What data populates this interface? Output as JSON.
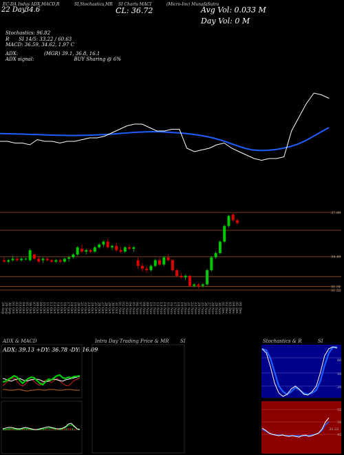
{
  "header": {
    "line1_a": "EC-DA Indus ADX,MACD,R",
    "line1_b": "SI,Stochastics,MR",
    "line1_c": "SI Charts MACI",
    "line1_d": "(Micro-Inv) MunafaSutra",
    "date_left": "22 Day",
    "date_num": "34.6",
    "close_label": "CL: 36.72",
    "avg_vol": "Avg Vol: 0.033 M",
    "day_vol": "Day Vol: 0 M"
  },
  "info": {
    "stochastics": "Stochastics: 96.82",
    "rsi": "SI 14/5: 33.22 / 60.63",
    "rsi_prefix": "R",
    "macd": "MACD: 36.59, 34.62, 1.97 C",
    "adx": "ADX:",
    "adx_vals": "(MGR) 39.1, 36.8, 16.1",
    "adx_signal": "ADX signal:",
    "adx_signal_val": "BUY Sharing @ 6%"
  },
  "price_levels": [
    "37.88",
    "34.49",
    "31.31",
    "31.55"
  ],
  "x_labels": [
    "28 Sep",
    "29 Sep",
    "30 Sep",
    "01 Oct",
    "02 Oct",
    "03 Oct",
    "04 Oct",
    "05 Oct",
    "06 Oct",
    "07 Oct",
    "08 Oct",
    "09 Oct",
    "10 Oct",
    "11 Oct",
    "12 Oct",
    "13 Oct",
    "14 Oct",
    "15 Oct",
    "16 Oct",
    "17 Oct",
    "18 Oct",
    "19 Oct",
    "20 Oct",
    "21 Oct",
    "22 Oct",
    "23 Oct",
    "24 Oct",
    "25 Oct",
    "26 Oct",
    "27 Oct",
    "28 Oct",
    "29 Oct",
    "30 Oct",
    "31 Oct",
    "01 Nov",
    "02 Nov",
    "03 Nov",
    "04 Nov",
    "05 Nov",
    "06 Nov",
    "07 Nov",
    "08 Nov",
    "09 Nov",
    "10 Nov",
    "11 Nov",
    "12 Nov",
    "13 Nov",
    "14 Nov",
    "15 Nov",
    "16 Nov",
    "17 Nov",
    "18 Nov",
    "19 Nov",
    "20 Nov",
    "21 Nov",
    "22 Nov",
    "23 Nov",
    "24 Nov",
    "25 Nov",
    "26 Nov",
    "27 Nov",
    "28 Nov",
    "29 Nov",
    "30 Nov",
    "01 Dec",
    "02 Dec",
    "03 Dec",
    "04 Dec",
    "05 Dec",
    "06 Dec"
  ],
  "panels": {
    "adx_title": "ADX  & MACD",
    "adx_values": "ADX: 39.13  +DY: 36.78  -DY: 16.09",
    "intra_title": "Intra  Day Trading Price  & MR",
    "intra_si": "SI",
    "stoch_title": "Stochastics & R",
    "stoch_si": "SI",
    "stoch_ticks": [
      "80",
      "50",
      "20"
    ],
    "rsi_ticks": [
      "55",
      "50",
      "45"
    ],
    "rsi_end": "33.22"
  },
  "chart_data": {
    "type": "candlestick",
    "candles": [
      {
        "o": 34.2,
        "h": 34.4,
        "l": 34.0,
        "c": 34.1,
        "up": false
      },
      {
        "o": 34.1,
        "h": 34.3,
        "l": 34.0,
        "c": 34.2,
        "up": true
      },
      {
        "o": 34.2,
        "h": 34.5,
        "l": 34.1,
        "c": 34.3,
        "up": true
      },
      {
        "o": 34.3,
        "h": 34.4,
        "l": 34.1,
        "c": 34.2,
        "up": false
      },
      {
        "o": 34.2,
        "h": 34.4,
        "l": 34.1,
        "c": 34.3,
        "up": true
      },
      {
        "o": 34.3,
        "h": 34.4,
        "l": 34.2,
        "c": 34.3,
        "up": true
      },
      {
        "o": 34.2,
        "h": 35.0,
        "l": 34.1,
        "c": 34.9,
        "up": true
      },
      {
        "o": 34.6,
        "h": 34.7,
        "l": 34.2,
        "c": 34.3,
        "up": false
      },
      {
        "o": 34.3,
        "h": 34.5,
        "l": 34.0,
        "c": 34.1,
        "up": false
      },
      {
        "o": 34.2,
        "h": 34.4,
        "l": 34.0,
        "c": 34.3,
        "up": true
      },
      {
        "o": 34.3,
        "h": 34.4,
        "l": 34.1,
        "c": 34.2,
        "up": false
      },
      {
        "o": 34.2,
        "h": 34.3,
        "l": 34.0,
        "c": 34.1,
        "up": false
      },
      {
        "o": 34.1,
        "h": 34.3,
        "l": 34.0,
        "c": 34.2,
        "up": true
      },
      {
        "o": 34.2,
        "h": 34.3,
        "l": 34.0,
        "c": 34.1,
        "up": false
      },
      {
        "o": 34.1,
        "h": 34.4,
        "l": 34.0,
        "c": 34.3,
        "up": true
      },
      {
        "o": 34.3,
        "h": 34.5,
        "l": 34.1,
        "c": 34.4,
        "up": true
      },
      {
        "o": 34.4,
        "h": 34.7,
        "l": 34.3,
        "c": 34.6,
        "up": true
      },
      {
        "o": 34.6,
        "h": 35.2,
        "l": 34.5,
        "c": 35.1,
        "up": true
      },
      {
        "o": 35.0,
        "h": 35.3,
        "l": 34.7,
        "c": 34.8,
        "up": false
      },
      {
        "o": 34.8,
        "h": 35.0,
        "l": 34.6,
        "c": 34.9,
        "up": true
      },
      {
        "o": 34.9,
        "h": 35.0,
        "l": 34.7,
        "c": 34.8,
        "up": false
      },
      {
        "o": 34.8,
        "h": 35.2,
        "l": 34.7,
        "c": 35.1,
        "up": true
      },
      {
        "o": 35.1,
        "h": 35.4,
        "l": 35.0,
        "c": 35.3,
        "up": true
      },
      {
        "o": 35.3,
        "h": 35.6,
        "l": 35.1,
        "c": 35.5,
        "up": true
      },
      {
        "o": 35.5,
        "h": 35.7,
        "l": 35.0,
        "c": 35.1,
        "up": false
      },
      {
        "o": 35.1,
        "h": 35.3,
        "l": 34.9,
        "c": 35.2,
        "up": true
      },
      {
        "o": 35.2,
        "h": 35.4,
        "l": 34.8,
        "c": 34.9,
        "up": false
      },
      {
        "o": 34.9,
        "h": 35.1,
        "l": 34.7,
        "c": 34.8,
        "up": false
      },
      {
        "o": 34.8,
        "h": 35.2,
        "l": 34.7,
        "c": 35.1,
        "up": true
      },
      {
        "o": 35.1,
        "h": 35.3,
        "l": 34.9,
        "c": 35.0,
        "up": false
      },
      {
        "o": 35.0,
        "h": 35.2,
        "l": 34.8,
        "c": 35.1,
        "up": true
      },
      {
        "o": 34.2,
        "h": 34.4,
        "l": 33.6,
        "c": 33.8,
        "up": false
      },
      {
        "o": 33.8,
        "h": 34.0,
        "l": 33.4,
        "c": 33.6,
        "up": false
      },
      {
        "o": 33.6,
        "h": 33.8,
        "l": 33.3,
        "c": 33.5,
        "up": false
      },
      {
        "o": 33.5,
        "h": 33.9,
        "l": 33.4,
        "c": 33.8,
        "up": true
      },
      {
        "o": 33.8,
        "h": 34.3,
        "l": 33.7,
        "c": 34.2,
        "up": true
      },
      {
        "o": 34.2,
        "h": 34.4,
        "l": 33.8,
        "c": 33.9,
        "up": false
      },
      {
        "o": 33.9,
        "h": 34.5,
        "l": 33.8,
        "c": 34.4,
        "up": true
      },
      {
        "o": 34.4,
        "h": 34.6,
        "l": 34.1,
        "c": 34.2,
        "up": false
      },
      {
        "o": 34.2,
        "h": 34.3,
        "l": 33.4,
        "c": 33.5,
        "up": false
      },
      {
        "o": 33.5,
        "h": 33.6,
        "l": 33.0,
        "c": 33.1,
        "up": false
      },
      {
        "o": 33.1,
        "h": 33.3,
        "l": 32.9,
        "c": 33.0,
        "up": false
      },
      {
        "o": 33.0,
        "h": 33.2,
        "l": 32.8,
        "c": 33.1,
        "up": true
      },
      {
        "o": 33.1,
        "h": 33.2,
        "l": 32.3,
        "c": 32.4,
        "up": false
      },
      {
        "o": 32.4,
        "h": 32.6,
        "l": 32.3,
        "c": 32.5,
        "up": true
      },
      {
        "o": 32.5,
        "h": 32.6,
        "l": 32.2,
        "c": 32.4,
        "up": false
      },
      {
        "o": 32.4,
        "h": 32.6,
        "l": 32.3,
        "c": 32.5,
        "up": true
      },
      {
        "o": 32.5,
        "h": 33.6,
        "l": 32.4,
        "c": 33.5,
        "up": true
      },
      {
        "o": 33.5,
        "h": 34.5,
        "l": 33.4,
        "c": 34.4,
        "up": true
      },
      {
        "o": 34.4,
        "h": 34.8,
        "l": 34.3,
        "c": 34.7,
        "up": true
      },
      {
        "o": 34.7,
        "h": 35.6,
        "l": 34.6,
        "c": 35.5,
        "up": true
      },
      {
        "o": 35.5,
        "h": 36.7,
        "l": 35.4,
        "c": 36.6,
        "up": true
      },
      {
        "o": 36.6,
        "h": 37.4,
        "l": 36.5,
        "c": 37.3,
        "up": true
      },
      {
        "o": 37.4,
        "h": 37.5,
        "l": 36.9,
        "c": 37.0,
        "up": false
      },
      {
        "o": 37.0,
        "h": 37.1,
        "l": 36.7,
        "c": 36.8,
        "up": false
      }
    ],
    "ma_white": [
      34.4,
      34.4,
      34.3,
      34.3,
      34.2,
      34.5,
      34.4,
      34.4,
      34.3,
      34.4,
      34.4,
      34.5,
      34.6,
      34.6,
      34.7,
      34.9,
      35.1,
      35.3,
      35.4,
      35.4,
      35.2,
      35.0,
      35.0,
      35.1,
      35.1,
      34.0,
      33.8,
      33.9,
      34.0,
      34.2,
      34.3,
      34.0,
      33.8,
      33.6,
      33.4,
      33.3,
      33.4,
      33.4,
      33.5,
      35.0,
      35.8,
      36.6,
      37.2,
      37.1,
      36.9
    ],
    "ma_blue": [
      34.85,
      34.84,
      34.83,
      34.82,
      34.8,
      34.79,
      34.77,
      34.76,
      34.75,
      34.74,
      34.74,
      34.75,
      34.76,
      34.78,
      34.8,
      34.83,
      34.87,
      34.9,
      34.93,
      34.95,
      34.96,
      34.95,
      34.93,
      34.9,
      34.87,
      34.82,
      34.76,
      34.68,
      34.58,
      34.45,
      34.3,
      34.15,
      34.0,
      33.9,
      33.87,
      33.88,
      33.92,
      34.0,
      34.1,
      34.25,
      34.45,
      34.7,
      34.95,
      35.2
    ]
  },
  "colors": {
    "up": "#00c800",
    "down": "#e00000",
    "ma_blue": "#1f5fff",
    "level": "#a0521d",
    "rsi_bg": "#8b0000",
    "stoch_bg": "#00008b"
  }
}
